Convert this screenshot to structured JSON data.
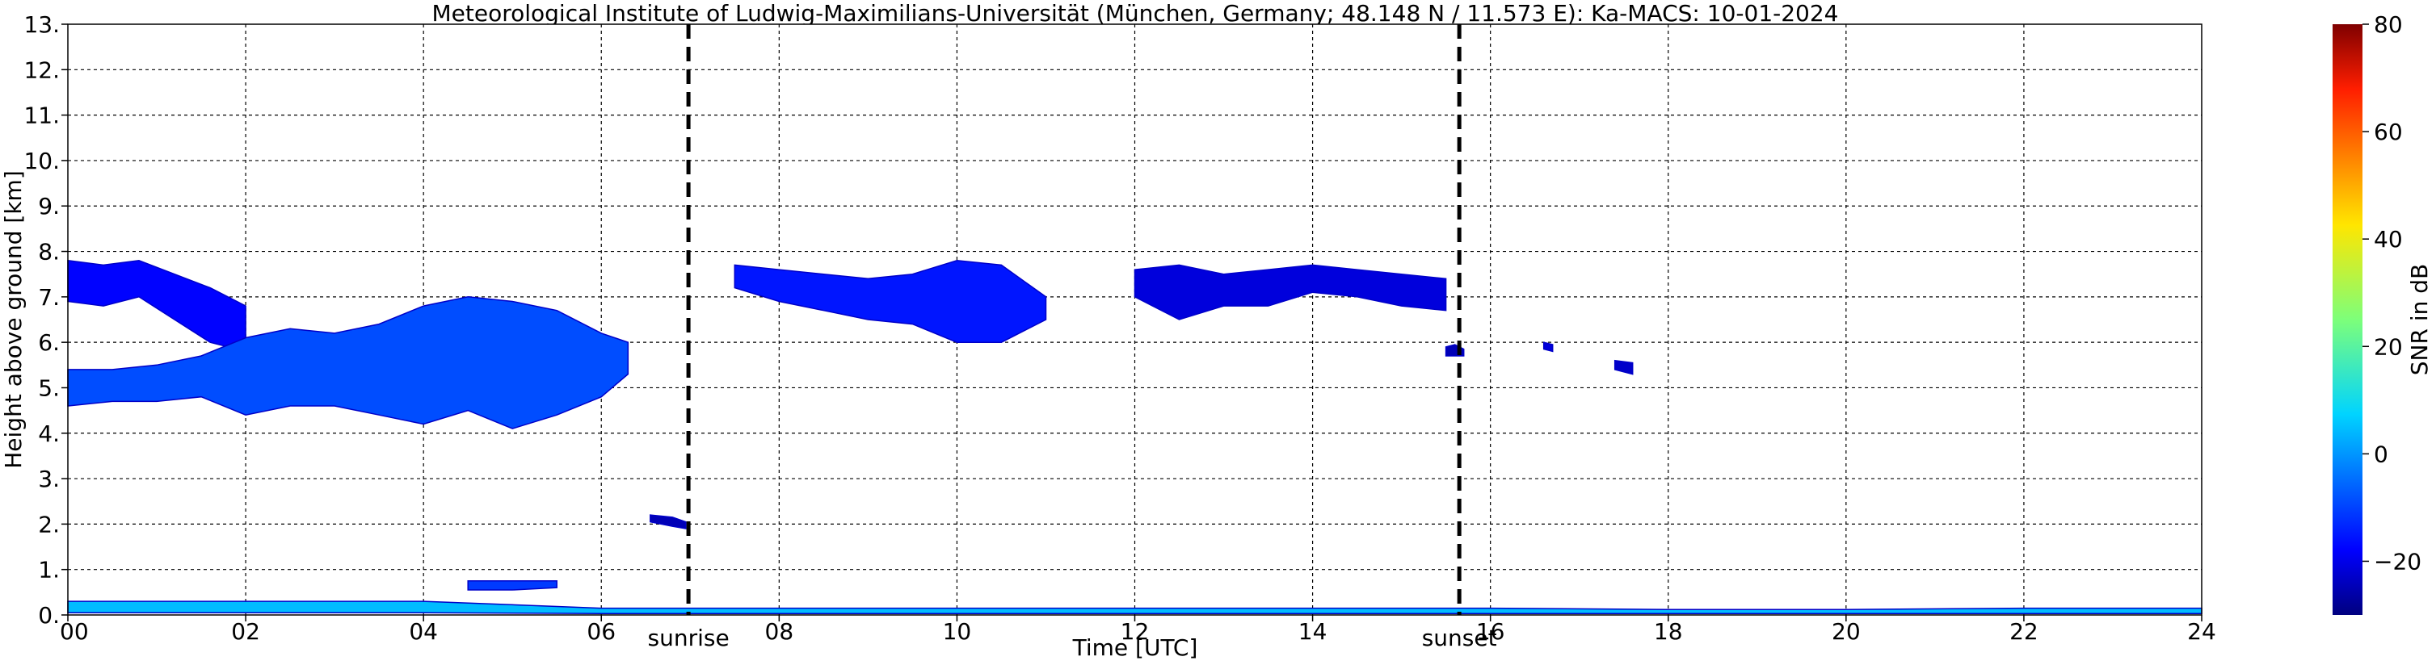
{
  "chart_data": {
    "type": "heatmap",
    "title": "Meteorological Institute of Ludwig-Maximilians-Universität (München, Germany; 48.148 N / 11.573 E):    Ka-MACS: 10-01-2024",
    "xlabel": "Time [UTC]",
    "ylabel": "Height above ground [km]",
    "xlim": [
      0,
      24
    ],
    "ylim": [
      0,
      13
    ],
    "x_ticks": [
      0,
      2,
      4,
      6,
      8,
      10,
      12,
      14,
      16,
      18,
      20,
      22,
      24
    ],
    "x_tick_labels": [
      "00",
      "02",
      "04",
      "06",
      "08",
      "10",
      "12",
      "14",
      "16",
      "18",
      "20",
      "22",
      "24"
    ],
    "y_ticks": [
      0,
      1,
      2,
      3,
      4,
      5,
      6,
      7,
      8,
      9,
      10,
      11,
      12,
      13
    ],
    "y_tick_labels": [
      "0.",
      "1.",
      "2.",
      "3.",
      "4.",
      "5.",
      "6.",
      "7.",
      "8.",
      "9.",
      "10.",
      "11.",
      "12.",
      "13."
    ],
    "grid": true,
    "colorbar": {
      "label": "SNR in dB",
      "range": [
        -30,
        80
      ],
      "ticks": [
        -20,
        0,
        20,
        40,
        60,
        80
      ],
      "tick_labels": [
        "−20",
        "0",
        "20",
        "40",
        "60",
        "80"
      ],
      "colormap": "jet"
    },
    "events": [
      {
        "label": "sunrise",
        "time": 6.98
      },
      {
        "label": "sunset",
        "time": 15.65
      }
    ],
    "echo_regions": [
      {
        "name": "upper-cloud-early",
        "x": [
          0.0,
          0.4,
          0.8,
          1.2,
          1.6,
          2.0
        ],
        "top": [
          7.8,
          7.7,
          7.8,
          7.5,
          7.2,
          6.8
        ],
        "bottom": [
          6.9,
          6.8,
          7.0,
          6.5,
          6.0,
          5.8
        ],
        "snr": -16
      },
      {
        "name": "mid-cloud-layer",
        "x": [
          0.0,
          0.5,
          1.0,
          1.5,
          2.0,
          2.5,
          3.0,
          3.5,
          4.0,
          4.5,
          5.0,
          5.5,
          6.0,
          6.3
        ],
        "top": [
          5.4,
          5.4,
          5.5,
          5.7,
          6.1,
          6.3,
          6.2,
          6.4,
          6.8,
          7.0,
          6.9,
          6.7,
          6.2,
          6.0
        ],
        "bottom": [
          4.6,
          4.7,
          4.7,
          4.8,
          4.4,
          4.6,
          4.6,
          4.4,
          4.2,
          4.5,
          4.1,
          4.4,
          4.8,
          5.3
        ],
        "snr": -8
      },
      {
        "name": "low-cloud-fragment",
        "x": [
          4.5,
          5.0,
          5.5
        ],
        "top": [
          0.75,
          0.75,
          0.75
        ],
        "bottom": [
          0.55,
          0.55,
          0.6
        ],
        "snr": -10
      },
      {
        "name": "sunrise-fragment",
        "x": [
          6.55,
          6.8,
          6.95
        ],
        "top": [
          2.2,
          2.15,
          2.05
        ],
        "bottom": [
          2.05,
          1.95,
          1.9
        ],
        "snr": -24
      },
      {
        "name": "upper-cloud-morning",
        "x": [
          7.5,
          8.0,
          8.5,
          9.0,
          9.5,
          10.0,
          10.5,
          11.0
        ],
        "top": [
          7.7,
          7.6,
          7.5,
          7.4,
          7.5,
          7.8,
          7.7,
          7.0
        ],
        "bottom": [
          7.2,
          6.9,
          6.7,
          6.5,
          6.4,
          6.0,
          6.0,
          6.5
        ],
        "snr": -14
      },
      {
        "name": "upper-cloud-afternoon",
        "x": [
          12.0,
          12.5,
          13.0,
          13.5,
          14.0,
          14.5,
          15.0,
          15.5
        ],
        "top": [
          7.6,
          7.7,
          7.5,
          7.6,
          7.7,
          7.6,
          7.5,
          7.4
        ],
        "bottom": [
          7.0,
          6.5,
          6.8,
          6.8,
          7.1,
          7.0,
          6.8,
          6.7
        ],
        "snr": -20
      },
      {
        "name": "near-sunset-fragment",
        "x": [
          15.5,
          15.6,
          15.7
        ],
        "top": [
          5.9,
          5.95,
          5.85
        ],
        "bottom": [
          5.7,
          5.7,
          5.7
        ],
        "snr": -24
      },
      {
        "name": "isolated-echo-1",
        "x": [
          16.6,
          16.7
        ],
        "top": [
          6.0,
          5.95
        ],
        "bottom": [
          5.85,
          5.8
        ],
        "snr": -20
      },
      {
        "name": "isolated-echo-2",
        "x": [
          17.4,
          17.6
        ],
        "top": [
          5.6,
          5.55
        ],
        "bottom": [
          5.4,
          5.3
        ],
        "snr": -22
      },
      {
        "name": "surface-clutter",
        "x": [
          0.0,
          4.0,
          6.0,
          12.5,
          14.0,
          16.0,
          18.0,
          20.0,
          22.0,
          24.0
        ],
        "top": [
          0.3,
          0.3,
          0.15,
          0.15,
          0.15,
          0.15,
          0.12,
          0.12,
          0.15,
          0.15
        ],
        "bottom": [
          0.05,
          0.05,
          0.03,
          0.03,
          0.03,
          0.03,
          0.03,
          0.03,
          0.03,
          0.03
        ],
        "snr": 4
      }
    ]
  }
}
